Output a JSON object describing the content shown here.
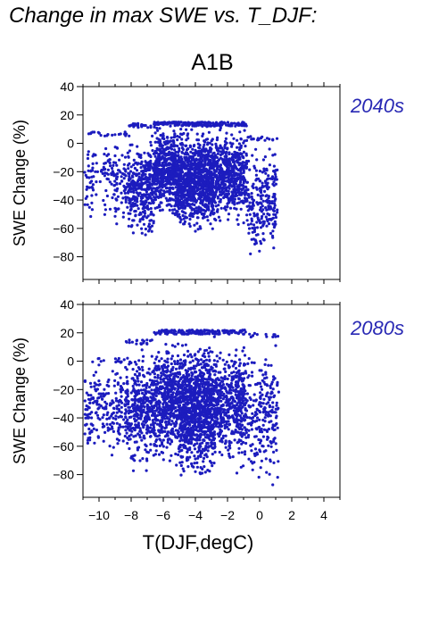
{
  "title": "Change in max SWE vs. T_DJF:",
  "scenario": "A1B",
  "colors": {
    "points": "#1c1cbe",
    "panel_label": "#2828b4",
    "axis": "#000000"
  },
  "chart_data": [
    {
      "type": "scatter",
      "panel_label": "2040s",
      "xlabel": "",
      "ylabel": "SWE Change (%)",
      "xlim": [
        -11,
        5
      ],
      "ylim": [
        -96,
        40
      ],
      "yticks": [
        40,
        20,
        0,
        -20,
        -40,
        -60,
        -80
      ],
      "xticks_labeled": false,
      "point_cloud": {
        "n_points": 3000,
        "upper_cap": 15,
        "clusters": [
          {
            "x": [
              -10.9,
              -8.2
            ],
            "y": [
              -60,
              8
            ],
            "weight": 0.06
          },
          {
            "x": [
              -8.2,
              -6.6
            ],
            "y": [
              -78,
              14
            ],
            "weight": 0.12
          },
          {
            "x": [
              -6.6,
              -5.3
            ],
            "y": [
              -55,
              17
            ],
            "weight": 0.17
          },
          {
            "x": [
              -5.3,
              -2.8
            ],
            "y": [
              -66,
              15
            ],
            "weight": 0.38
          },
          {
            "x": [
              -2.8,
              -0.8
            ],
            "y": [
              -60,
              15
            ],
            "weight": 0.19
          },
          {
            "x": [
              -0.8,
              1.1
            ],
            "y": [
              -90,
              5
            ],
            "weight": 0.08
          }
        ]
      }
    },
    {
      "type": "scatter",
      "panel_label": "2080s",
      "xlabel": "T(DJF,degC)",
      "ylabel": "SWE Change (%)",
      "xlim": [
        -11,
        5
      ],
      "ylim": [
        -96,
        40
      ],
      "yticks": [
        40,
        20,
        0,
        -20,
        -40,
        -60,
        -80
      ],
      "xticks": [
        -10,
        -8,
        -6,
        -4,
        -2,
        0,
        2,
        4
      ],
      "xticks_labeled": true,
      "point_cloud": {
        "n_points": 3000,
        "upper_cap": 22,
        "clusters": [
          {
            "x": [
              -10.9,
              -8.4
            ],
            "y": [
              -72,
              2
            ],
            "weight": 0.07
          },
          {
            "x": [
              -8.4,
              -6.6
            ],
            "y": [
              -82,
              15
            ],
            "weight": 0.13
          },
          {
            "x": [
              -6.6,
              -5.0
            ],
            "y": [
              -75,
              22
            ],
            "weight": 0.18
          },
          {
            "x": [
              -5.0,
              -2.8
            ],
            "y": [
              -88,
              22
            ],
            "weight": 0.36
          },
          {
            "x": [
              -2.8,
              -0.8
            ],
            "y": [
              -82,
              22
            ],
            "weight": 0.18
          },
          {
            "x": [
              -0.8,
              1.2
            ],
            "y": [
              -95,
              20
            ],
            "weight": 0.08
          }
        ]
      }
    }
  ]
}
